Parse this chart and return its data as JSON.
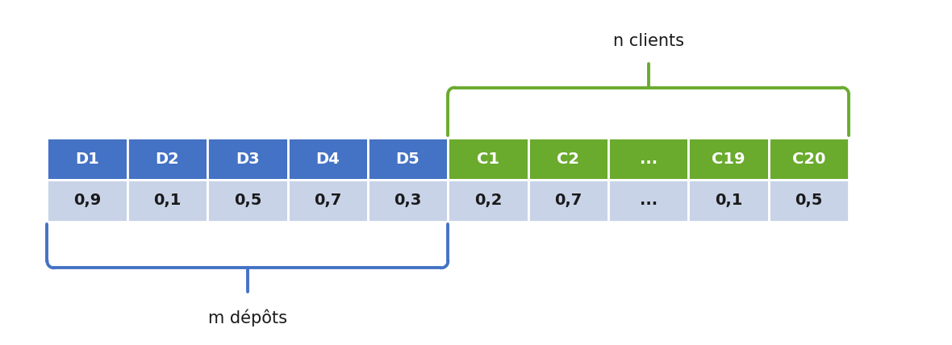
{
  "depot_labels": [
    "D1",
    "D2",
    "D3",
    "D4",
    "D5"
  ],
  "depot_values": [
    "0,9",
    "0,1",
    "0,5",
    "0,7",
    "0,3"
  ],
  "client_labels": [
    "C1",
    "C2",
    "...",
    "C19",
    "C20"
  ],
  "client_values": [
    "0,2",
    "0,7",
    "...",
    "0,1",
    "0,5"
  ],
  "depot_header_color": "#4472C4",
  "client_header_color": "#6AAB2E",
  "value_row_color": "#C8D3E8",
  "header_text_color": "#FFFFFF",
  "value_text_color": "#1a1a1a",
  "bracket_color_depot": "#4472C4",
  "bracket_color_client": "#6AAB2E",
  "label_depot": "m dépôts",
  "label_client": "n clients",
  "bg_color": "#FFFFFF"
}
